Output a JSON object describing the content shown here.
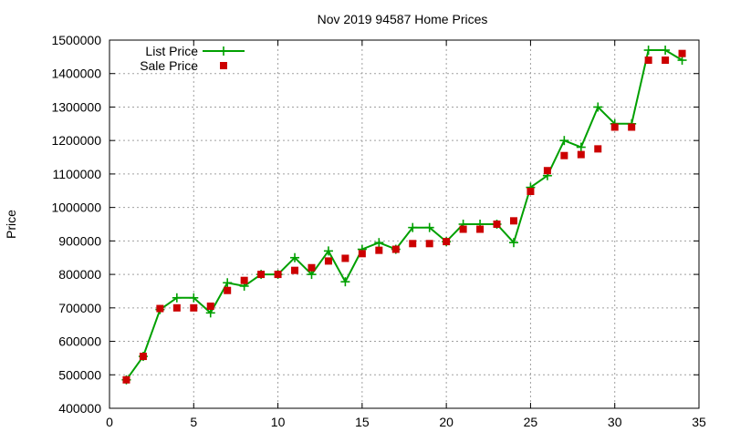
{
  "chart_data": {
    "type": "scatter",
    "title": "Nov 2019 94587 Home Prices",
    "xlabel": "",
    "ylabel": "Price",
    "xlim": [
      0,
      35
    ],
    "ylim": [
      400000,
      1500000
    ],
    "xticks": [
      0,
      5,
      10,
      15,
      20,
      25,
      30,
      35
    ],
    "yticks": [
      400000,
      500000,
      600000,
      700000,
      800000,
      900000,
      1000000,
      1100000,
      1200000,
      1300000,
      1400000,
      1500000
    ],
    "grid": true,
    "legend_position": "top-left",
    "series": [
      {
        "name": "List Price",
        "style": "line-with-plus",
        "color": "#00a000",
        "points": [
          [
            1,
            485000
          ],
          [
            2,
            555000
          ],
          [
            3,
            695000
          ],
          [
            4,
            730000
          ],
          [
            5,
            730000
          ],
          [
            6,
            685000
          ],
          [
            7,
            775000
          ],
          [
            8,
            765000
          ],
          [
            9,
            800000
          ],
          [
            10,
            800000
          ],
          [
            11,
            850000
          ],
          [
            12,
            800000
          ],
          [
            13,
            870000
          ],
          [
            14,
            778000
          ],
          [
            15,
            875000
          ],
          [
            16,
            895000
          ],
          [
            17,
            875000
          ],
          [
            18,
            940000
          ],
          [
            19,
            940000
          ],
          [
            20,
            898000
          ],
          [
            21,
            950000
          ],
          [
            22,
            950000
          ],
          [
            23,
            950000
          ],
          [
            24,
            895000
          ],
          [
            25,
            1060000
          ],
          [
            26,
            1095000
          ],
          [
            27,
            1200000
          ],
          [
            28,
            1180000
          ],
          [
            29,
            1300000
          ],
          [
            30,
            1250000
          ],
          [
            31,
            1250000
          ],
          [
            32,
            1470000
          ],
          [
            33,
            1470000
          ],
          [
            34,
            1440000
          ]
        ]
      },
      {
        "name": "Sale Price",
        "style": "square-points",
        "color": "#cc0000",
        "points": [
          [
            1,
            485000
          ],
          [
            2,
            555000
          ],
          [
            3,
            698000
          ],
          [
            4,
            700000
          ],
          [
            5,
            700000
          ],
          [
            6,
            705000
          ],
          [
            7,
            752000
          ],
          [
            8,
            782000
          ],
          [
            9,
            800000
          ],
          [
            10,
            800000
          ],
          [
            11,
            812000
          ],
          [
            12,
            820000
          ],
          [
            13,
            840000
          ],
          [
            14,
            848000
          ],
          [
            15,
            862000
          ],
          [
            16,
            872000
          ],
          [
            17,
            875000
          ],
          [
            18,
            892000
          ],
          [
            19,
            892000
          ],
          [
            20,
            898000
          ],
          [
            21,
            935000
          ],
          [
            22,
            935000
          ],
          [
            23,
            950000
          ],
          [
            24,
            960000
          ],
          [
            25,
            1048000
          ],
          [
            26,
            1110000
          ],
          [
            27,
            1155000
          ],
          [
            28,
            1158000
          ],
          [
            29,
            1175000
          ],
          [
            30,
            1240000
          ],
          [
            31,
            1240000
          ],
          [
            32,
            1440000
          ],
          [
            33,
            1440000
          ],
          [
            34,
            1460000
          ]
        ]
      }
    ]
  }
}
